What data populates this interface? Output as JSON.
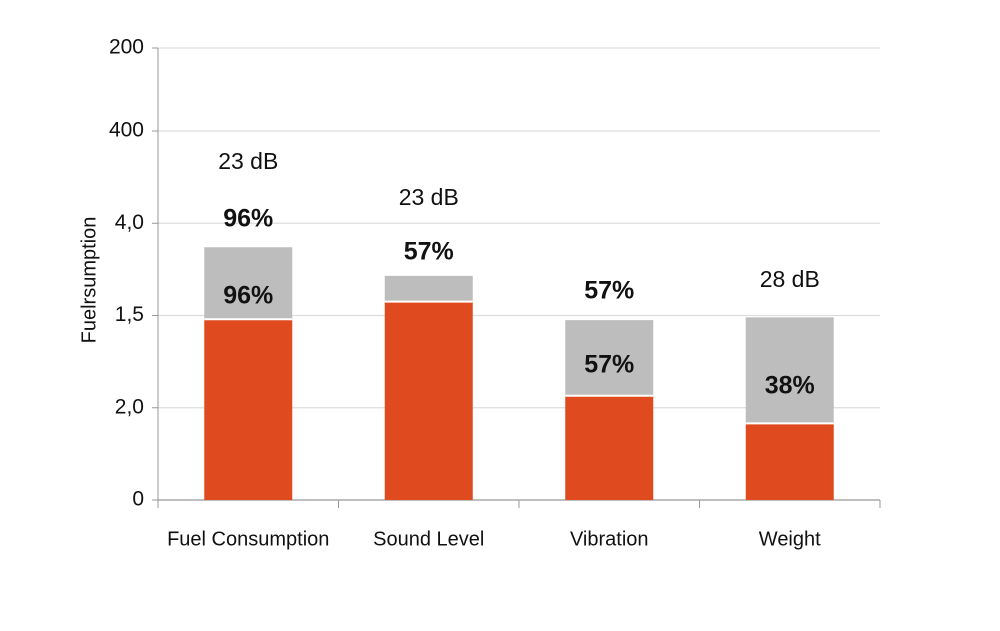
{
  "chart_data": {
    "type": "stacked_bar",
    "y_label": "Fuelrsumption",
    "categories": [
      "Fuel Consumption",
      "Sound Level",
      "Vibration",
      "Weight"
    ],
    "series": [
      {
        "name": null,
        "color": "#e04a1f",
        "values": [
          1.96,
          2.15,
          1.13,
          0.83
        ]
      },
      {
        "name": null,
        "color": "#bdbdbd",
        "values": [
          0.78,
          0.28,
          0.82,
          1.15
        ]
      }
    ],
    "annotations": [
      [
        "23 dB",
        "96%",
        "96%"
      ],
      [
        "23 dB",
        "57%"
      ],
      [
        "57%",
        "57%"
      ],
      [
        "28 dB",
        "38%"
      ]
    ],
    "ylim": [
      0,
      4.9
    ],
    "yticks": [
      0,
      {
        "value": 1,
        "label": "2,0"
      },
      {
        "value": 2,
        "label": "1,5"
      },
      {
        "value": 3,
        "label": "4,0"
      },
      {
        "value": 4,
        "label": "400"
      },
      {
        "value": 4.9,
        "label": "200"
      }
    ],
    "grid": true
  }
}
